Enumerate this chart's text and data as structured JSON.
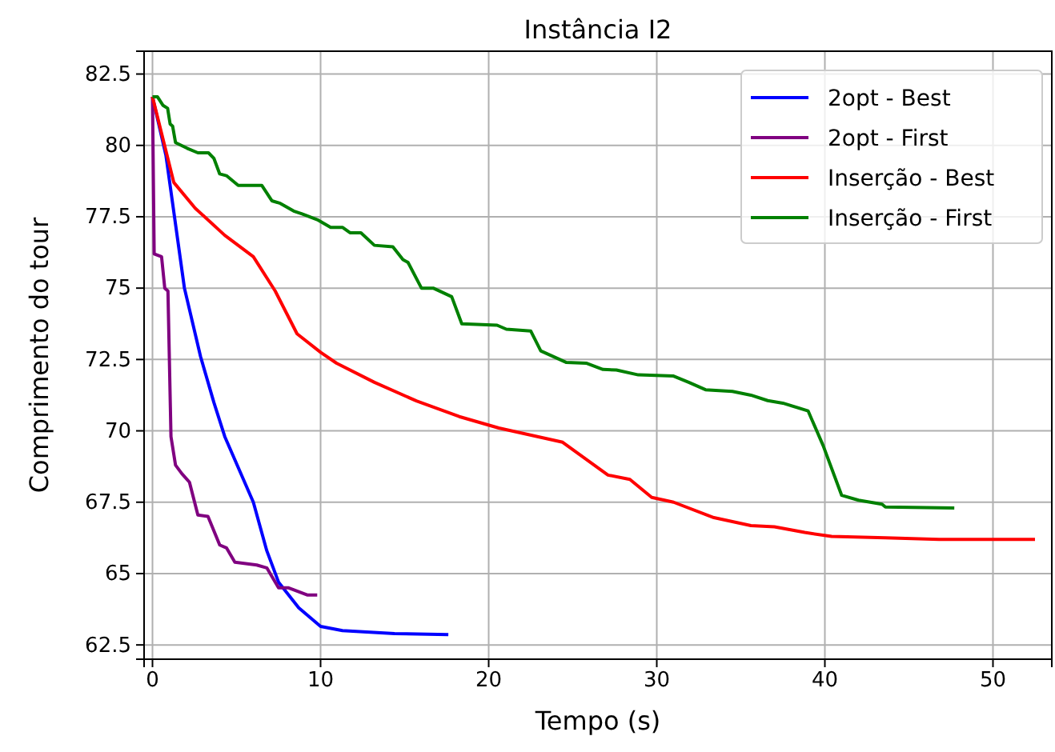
{
  "chart_data": {
    "type": "line",
    "title": "Instância I2",
    "xlabel": "Tempo (s)",
    "ylabel": "Comprimento do tour",
    "xlim": [
      -0.5,
      53.5
    ],
    "ylim": [
      62.0,
      83.3
    ],
    "xticks": [
      0,
      10,
      20,
      30,
      40,
      50
    ],
    "yticks": [
      62.5,
      65.0,
      67.5,
      70.0,
      72.5,
      75.0,
      77.5,
      80.0,
      82.5
    ],
    "grid": true,
    "legend": "top right",
    "marker": "none",
    "line_style": "solid",
    "series": [
      {
        "name": "2opt - Best",
        "color": "#0000ff",
        "x": [
          0,
          0.8,
          1.9,
          2.86,
          3.65,
          4.3,
          6.0,
          6.8,
          7.5,
          8.7,
          10,
          11.3,
          14.4,
          17.6
        ],
        "values": [
          81.7,
          79.65,
          75.0,
          72.6,
          71.0,
          69.8,
          67.5,
          65.8,
          64.7,
          63.8,
          63.15,
          63.0,
          62.9,
          62.86
        ]
      },
      {
        "name": "2opt - First",
        "color": "#800080",
        "x": [
          0,
          0.1,
          0.54,
          0.73,
          0.92,
          1.1,
          1.37,
          1.75,
          2.2,
          2.7,
          3.3,
          4.0,
          4.4,
          4.9,
          6.2,
          6.8,
          7.5,
          8.1,
          9.2,
          9.8
        ],
        "values": [
          81.7,
          76.2,
          76.1,
          75.0,
          74.9,
          69.8,
          68.8,
          68.5,
          68.2,
          67.05,
          67.0,
          66.0,
          65.9,
          65.4,
          65.3,
          65.2,
          64.5,
          64.5,
          64.25,
          64.25
        ]
      },
      {
        "name": "Inserção - Best",
        "color": "#ff0000",
        "x": [
          0,
          1.27,
          2.54,
          4.3,
          6.0,
          7.3,
          8.6,
          10,
          10.95,
          13.2,
          15.7,
          18.25,
          20.6,
          24.4,
          27.1,
          28.4,
          29.7,
          31.0,
          33.4,
          35.6,
          37.0,
          38.8,
          40.4,
          43.6,
          46.8,
          52.5
        ],
        "values": [
          81.7,
          78.7,
          77.8,
          76.85,
          76.1,
          74.9,
          73.4,
          72.75,
          72.37,
          71.7,
          71.05,
          70.5,
          70.1,
          69.6,
          68.45,
          68.3,
          67.67,
          67.5,
          66.96,
          66.68,
          66.64,
          66.44,
          66.3,
          66.25,
          66.2,
          66.2
        ]
      },
      {
        "name": "Inserção - First",
        "color": "#008000",
        "x": [
          0,
          0.3,
          0.63,
          0.9,
          1.05,
          1.2,
          1.37,
          2.06,
          2.7,
          3.33,
          3.65,
          4.0,
          4.4,
          5.1,
          6.5,
          7.1,
          7.6,
          8.4,
          8.9,
          9.8,
          10.6,
          11.3,
          11.75,
          12.4,
          13.2,
          14.3,
          14.9,
          15.2,
          16.0,
          16.7,
          17.8,
          18.4,
          20.5,
          21.05,
          22.5,
          23.1,
          24.6,
          25.8,
          26.8,
          27.6,
          28.9,
          31.0,
          31.9,
          32.9,
          34.5,
          35.6,
          36.6,
          37.5,
          39.0,
          39.9,
          41.0,
          42.0,
          43.4,
          43.6,
          47.7
        ],
        "values": [
          81.7,
          81.7,
          81.4,
          81.3,
          80.75,
          80.67,
          80.1,
          79.9,
          79.74,
          79.74,
          79.55,
          79.0,
          78.94,
          78.6,
          78.6,
          78.06,
          77.97,
          77.7,
          77.6,
          77.4,
          77.13,
          77.13,
          76.94,
          76.94,
          76.5,
          76.45,
          76.0,
          75.9,
          75.0,
          75.0,
          74.7,
          73.75,
          73.7,
          73.56,
          73.5,
          72.8,
          72.4,
          72.37,
          72.15,
          72.13,
          71.96,
          71.92,
          71.7,
          71.44,
          71.38,
          71.25,
          71.06,
          70.97,
          70.7,
          69.48,
          67.74,
          67.57,
          67.43,
          67.33,
          67.3
        ]
      }
    ]
  }
}
